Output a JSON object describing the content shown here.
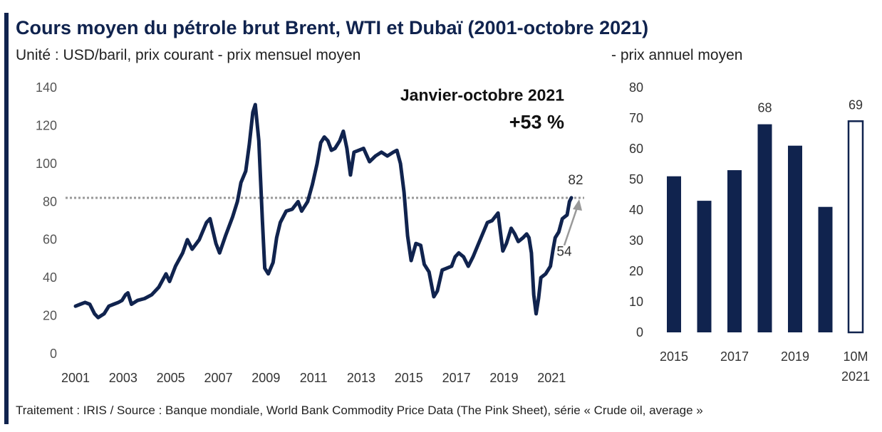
{
  "title": "Cours moyen du pétrole brut Brent, WTI et Dubaï (2001-octobre 2021)",
  "subtitle_left": "Unité : USD/baril, prix courant - prix mensuel moyen",
  "subtitle_right": "- prix annuel moyen",
  "footer": "Traitement : IRIS / Source : Banque mondiale, World Bank Commodity Price Data (The Pink Sheet), série « Crude oil, average »",
  "colors": {
    "series": "#10234e",
    "reference_line": "#999999",
    "arrow": "#999999",
    "highlight_bar_fill": "#ffffff"
  },
  "chart_data": [
    {
      "type": "line",
      "annotation_title": "Janvier-octobre 2021",
      "annotation_change": "+53 %",
      "annotation_start_label": "54",
      "annotation_end_label": "82",
      "reference_line_value": 82,
      "ylim": [
        0,
        140
      ],
      "y_ticks": [
        "0",
        "20",
        "40",
        "60",
        "80",
        "100",
        "120",
        "140"
      ],
      "x_ticks": [
        "2001",
        "2003",
        "2005",
        "2007",
        "2009",
        "2011",
        "2013",
        "2015",
        "2017",
        "2019",
        "2021"
      ],
      "x_range": [
        2001,
        2021.83
      ],
      "grid": false,
      "series": [
        {
          "points": [
            [
              2001.0,
              25
            ],
            [
              2001.2,
              26
            ],
            [
              2001.4,
              27
            ],
            [
              2001.6,
              26
            ],
            [
              2001.8,
              21
            ],
            [
              2001.95,
              19
            ],
            [
              2002.2,
              21
            ],
            [
              2002.4,
              25
            ],
            [
              2002.6,
              26
            ],
            [
              2002.8,
              27
            ],
            [
              2002.95,
              28
            ],
            [
              2003.1,
              31
            ],
            [
              2003.2,
              32
            ],
            [
              2003.35,
              26
            ],
            [
              2003.6,
              28
            ],
            [
              2003.9,
              29
            ],
            [
              2004.2,
              31
            ],
            [
              2004.5,
              35
            ],
            [
              2004.8,
              42
            ],
            [
              2004.95,
              38
            ],
            [
              2005.2,
              46
            ],
            [
              2005.5,
              53
            ],
            [
              2005.7,
              60
            ],
            [
              2005.9,
              55
            ],
            [
              2006.2,
              60
            ],
            [
              2006.5,
              69
            ],
            [
              2006.65,
              71
            ],
            [
              2006.9,
              58
            ],
            [
              2007.05,
              53
            ],
            [
              2007.3,
              62
            ],
            [
              2007.6,
              72
            ],
            [
              2007.8,
              80
            ],
            [
              2007.95,
              90
            ],
            [
              2008.15,
              96
            ],
            [
              2008.3,
              110
            ],
            [
              2008.45,
              127
            ],
            [
              2008.55,
              131
            ],
            [
              2008.7,
              112
            ],
            [
              2008.85,
              70
            ],
            [
              2008.95,
              45
            ],
            [
              2009.1,
              42
            ],
            [
              2009.3,
              48
            ],
            [
              2009.45,
              61
            ],
            [
              2009.6,
              69
            ],
            [
              2009.85,
              75
            ],
            [
              2010.1,
              76
            ],
            [
              2010.35,
              80
            ],
            [
              2010.5,
              75
            ],
            [
              2010.75,
              80
            ],
            [
              2010.95,
              89
            ],
            [
              2011.15,
              100
            ],
            [
              2011.3,
              111
            ],
            [
              2011.45,
              114
            ],
            [
              2011.6,
              112
            ],
            [
              2011.75,
              107
            ],
            [
              2011.9,
              108
            ],
            [
              2012.1,
              112
            ],
            [
              2012.25,
              117
            ],
            [
              2012.4,
              108
            ],
            [
              2012.55,
              94
            ],
            [
              2012.7,
              106
            ],
            [
              2012.9,
              107
            ],
            [
              2013.1,
              108
            ],
            [
              2013.35,
              101
            ],
            [
              2013.6,
              104
            ],
            [
              2013.85,
              106
            ],
            [
              2014.1,
              104
            ],
            [
              2014.35,
              106
            ],
            [
              2014.5,
              107
            ],
            [
              2014.65,
              100
            ],
            [
              2014.8,
              85
            ],
            [
              2014.95,
              62
            ],
            [
              2015.1,
              49
            ],
            [
              2015.3,
              58
            ],
            [
              2015.5,
              57
            ],
            [
              2015.65,
              47
            ],
            [
              2015.85,
              43
            ],
            [
              2016.05,
              30
            ],
            [
              2016.2,
              33
            ],
            [
              2016.4,
              44
            ],
            [
              2016.6,
              45
            ],
            [
              2016.8,
              46
            ],
            [
              2016.95,
              51
            ],
            [
              2017.1,
              53
            ],
            [
              2017.3,
              51
            ],
            [
              2017.5,
              46
            ],
            [
              2017.7,
              51
            ],
            [
              2017.9,
              57
            ],
            [
              2018.1,
              63
            ],
            [
              2018.3,
              69
            ],
            [
              2018.5,
              70
            ],
            [
              2018.75,
              74
            ],
            [
              2018.85,
              64
            ],
            [
              2018.95,
              54
            ],
            [
              2019.1,
              58
            ],
            [
              2019.3,
              66
            ],
            [
              2019.45,
              63
            ],
            [
              2019.6,
              59
            ],
            [
              2019.8,
              61
            ],
            [
              2019.95,
              63
            ],
            [
              2020.05,
              61
            ],
            [
              2020.15,
              53
            ],
            [
              2020.25,
              31
            ],
            [
              2020.35,
              21
            ],
            [
              2020.45,
              29
            ],
            [
              2020.55,
              40
            ],
            [
              2020.75,
              42
            ],
            [
              2020.95,
              46
            ],
            [
              2021.05,
              54
            ],
            [
              2021.15,
              61
            ],
            [
              2021.3,
              64
            ],
            [
              2021.45,
              71
            ],
            [
              2021.55,
              72
            ],
            [
              2021.65,
              73
            ],
            [
              2021.75,
              80
            ],
            [
              2021.83,
              82
            ]
          ]
        }
      ]
    },
    {
      "type": "bar",
      "ylim": [
        0,
        80
      ],
      "y_ticks": [
        "0",
        "10",
        "20",
        "30",
        "40",
        "50",
        "60",
        "70",
        "80"
      ],
      "categories": [
        "2015",
        "2016",
        "2017",
        "2018",
        "2019",
        "2020",
        "10M 2021"
      ],
      "x_tick_labels": [
        {
          "index": 0,
          "lines": [
            "2015"
          ]
        },
        {
          "index": 2,
          "lines": [
            "2017"
          ]
        },
        {
          "index": 4,
          "lines": [
            "2019"
          ]
        },
        {
          "index": 6,
          "lines": [
            "10M",
            "2021"
          ]
        }
      ],
      "values": [
        51,
        43,
        53,
        68,
        61,
        41,
        69
      ],
      "data_labels": [
        null,
        null,
        null,
        "68",
        null,
        null,
        "69"
      ],
      "highlight_index": 6,
      "grid": false
    }
  ]
}
